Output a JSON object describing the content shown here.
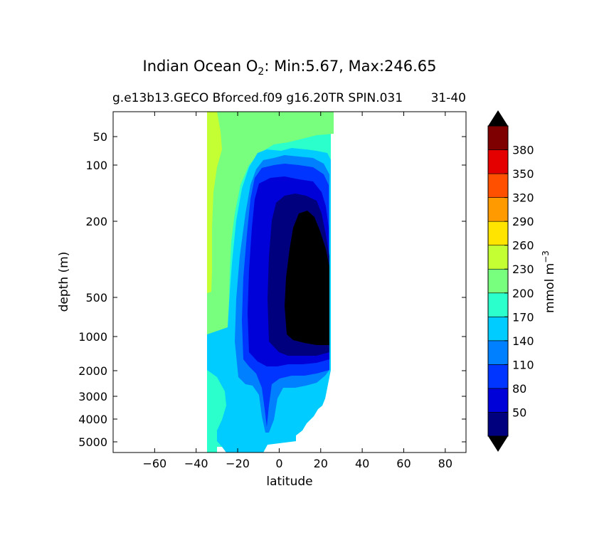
{
  "chart_data": {
    "type": "heatmap",
    "title_main": "Indian Ocean O",
    "title_sub_script": "2",
    "title_stats": ": Min:5.67, Max:246.65",
    "subtitle_left": "g.e13b13.GECO Bforced.f09 g16.20TR SPIN.031",
    "subtitle_right": "31-40",
    "xlabel": "latitude",
    "ylabel": "depth (m)",
    "xlim": [
      -80,
      90
    ],
    "xticks": [
      -60,
      -40,
      -20,
      0,
      20,
      40,
      60,
      80
    ],
    "ylim_depth": [
      5500,
      0
    ],
    "yscale": "log-like",
    "yticks": [
      50,
      100,
      200,
      500,
      1000,
      2000,
      3000,
      4000,
      5000
    ],
    "colorbar": {
      "label": "mmol m",
      "label_exp": "−3",
      "levels": [
        20,
        50,
        80,
        110,
        140,
        170,
        200,
        230,
        260,
        290,
        320,
        350,
        380,
        410
      ],
      "tick_labels": [
        50,
        80,
        110,
        140,
        170,
        200,
        230,
        260,
        290,
        320,
        350,
        380
      ],
      "colors": [
        "#00007f",
        "#0000d9",
        "#0034ff",
        "#0080ff",
        "#00ccff",
        "#2bffcb",
        "#78ff7e",
        "#c4ff33",
        "#ffe400",
        "#ff9a00",
        "#ff5000",
        "#e50000",
        "#7f0000"
      ],
      "extend_low_color": "#000000",
      "extend_high_color": "#000000"
    },
    "min": 5.67,
    "max": 246.65
  }
}
